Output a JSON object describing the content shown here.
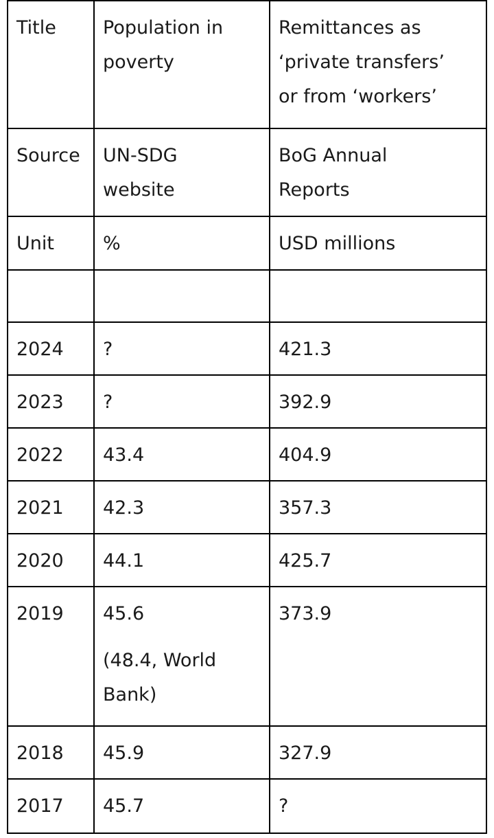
{
  "header_rows": [
    {
      "c1": "Title",
      "c2": [
        "Population in",
        "poverty"
      ],
      "c3": [
        "Remittances as",
        "‘private transfers’",
        "or from ‘workers’"
      ]
    },
    {
      "c1": "Source",
      "c2": [
        "UN-SDG",
        "website"
      ],
      "c3": [
        "BoG Annual",
        "Reports"
      ]
    },
    {
      "c1": "Unit",
      "c2": [
        "%"
      ],
      "c3": [
        "USD millions"
      ]
    }
  ],
  "blank_row": {
    "c1": "",
    "c2": "",
    "c3": ""
  },
  "data_rows": [
    {
      "year": "2024",
      "poverty": "?",
      "remittances": "421.3"
    },
    {
      "year": "2023",
      "poverty": "?",
      "remittances": "392.9"
    },
    {
      "year": "2022",
      "poverty": "43.4",
      "remittances": "404.9"
    },
    {
      "year": "2021",
      "poverty": "42.3",
      "remittances": "357.3"
    },
    {
      "year": "2020",
      "poverty": "44.1",
      "remittances": "425.7"
    },
    {
      "year": "2019",
      "poverty": "45.6",
      "poverty_note": [
        "(48.4, World",
        "Bank)"
      ],
      "remittances": "373.9"
    },
    {
      "year": "2018",
      "poverty": "45.9",
      "remittances": "327.9"
    },
    {
      "year": "2017",
      "poverty": "45.7",
      "remittances": "?"
    }
  ]
}
